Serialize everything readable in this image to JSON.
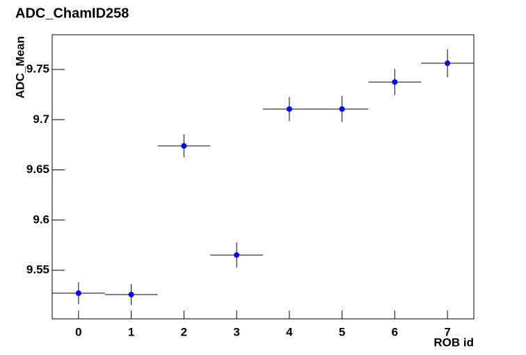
{
  "chart_data": {
    "type": "errorbar",
    "title": "ADC_ChamID258",
    "x_label": "ROB id",
    "y_label": "ADC_Mean",
    "x": [
      0,
      1,
      2,
      3,
      4,
      5,
      6,
      7
    ],
    "values": [
      9.5272,
      9.5258,
      9.6739,
      9.5652,
      9.7106,
      9.7106,
      9.7375,
      9.7562
    ],
    "errors": [
      0.011,
      0.0105,
      0.0115,
      0.0125,
      0.012,
      0.013,
      0.013,
      0.014
    ],
    "xerr": [
      0.5,
      0.5,
      0.5,
      0.5,
      0.5,
      0.5,
      0.5,
      0.5
    ],
    "color": "#0000ff",
    "xlim": [
      -0.5,
      7.5
    ],
    "xticks": [
      0,
      1,
      2,
      3,
      4,
      5,
      6,
      7
    ],
    "ylim": [
      9.5016,
      9.7846
    ],
    "yticks": [
      9.55,
      9.6,
      9.65,
      9.7,
      9.75
    ]
  }
}
